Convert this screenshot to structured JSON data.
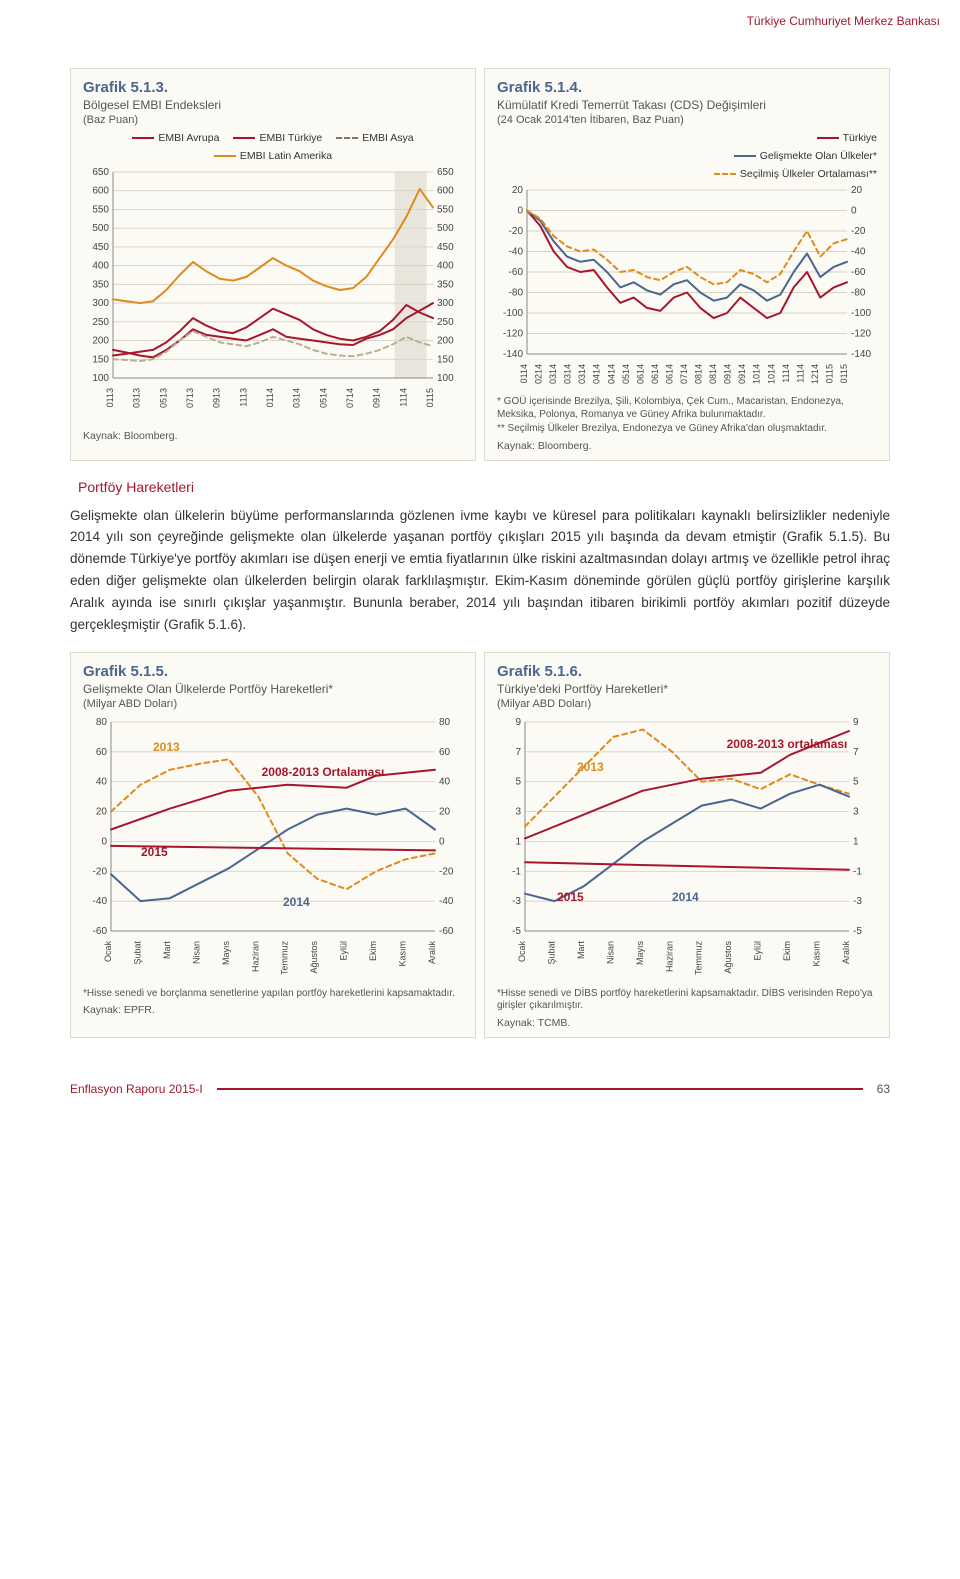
{
  "header": {
    "org": "Türkiye Cumhuriyet Merkez Bankası"
  },
  "chart513": {
    "type": "line",
    "title": "Grafik 5.1.3.",
    "subtitle": "Bölgesel EMBI Endeksleri",
    "unit": "(Baz Puan)",
    "legend": [
      {
        "label": "EMBI Avrupa",
        "color": "#a6172d",
        "dash": false
      },
      {
        "label": "EMBI Türkiye",
        "color": "#a6172d",
        "dash": false
      },
      {
        "label": "EMBI Asya",
        "color": "#7d7461",
        "dash": true
      },
      {
        "label": "EMBI Latin Amerika",
        "color": "#e08a1e",
        "dash": false
      }
    ],
    "yticks": [
      100,
      150,
      200,
      250,
      300,
      350,
      400,
      450,
      500,
      550,
      600,
      650
    ],
    "xticks": [
      "0113",
      "0313",
      "0513",
      "0713",
      "0913",
      "1113",
      "0114",
      "0314",
      "0514",
      "0714",
      "0914",
      "1114",
      "0115"
    ],
    "ylim": [
      100,
      650
    ],
    "shaded_band_x": [
      0.88,
      0.98
    ],
    "series": {
      "avrupa": {
        "color": "#a6172d",
        "dash": false,
        "y": [
          175,
          168,
          160,
          155,
          175,
          200,
          230,
          215,
          210,
          205,
          200,
          215,
          230,
          210,
          205,
          200,
          195,
          190,
          188,
          205,
          215,
          230,
          260,
          280,
          300
        ]
      },
      "turkiye": {
        "color": "#a6172d",
        "dash": false,
        "y": [
          160,
          165,
          170,
          175,
          195,
          225,
          260,
          240,
          225,
          220,
          235,
          260,
          285,
          270,
          255,
          230,
          215,
          205,
          200,
          210,
          225,
          255,
          295,
          275,
          260
        ]
      },
      "asya": {
        "color": "#b7b095",
        "dash": true,
        "y": [
          150,
          148,
          145,
          150,
          170,
          200,
          225,
          210,
          195,
          190,
          185,
          195,
          210,
          200,
          190,
          175,
          165,
          160,
          158,
          165,
          175,
          190,
          210,
          195,
          185
        ]
      },
      "latin": {
        "color": "#e08a1e",
        "dash": false,
        "y": [
          310,
          305,
          300,
          305,
          335,
          375,
          410,
          385,
          365,
          360,
          370,
          395,
          420,
          400,
          385,
          360,
          345,
          335,
          340,
          370,
          420,
          470,
          530,
          605,
          555
        ]
      }
    },
    "source": "Kaynak: Bloomberg."
  },
  "chart514": {
    "type": "line",
    "title": "Grafik 5.1.4.",
    "subtitle": "Kümülatif Kredi Temerrüt Takası (CDS) Değişimleri",
    "unit": "(24 Ocak 2014'ten İtibaren, Baz Puan)",
    "legend": [
      {
        "label": "Türkiye",
        "color": "#a6172d",
        "dash": false
      },
      {
        "label": "Gelişmekte Olan Ülkeler*",
        "color": "#4a6690",
        "dash": false
      },
      {
        "label": "Seçilmiş Ülkeler Ortalaması**",
        "color": "#e08a1e",
        "dash": true
      }
    ],
    "yticks": [
      -140,
      -120,
      -100,
      -80,
      -60,
      -40,
      -20,
      0,
      20
    ],
    "xticks": [
      "0114",
      "0214",
      "0314",
      "0314",
      "0314",
      "0414",
      "0414",
      "0514",
      "0614",
      "0614",
      "0614",
      "0714",
      "0814",
      "0814",
      "0914",
      "0914",
      "1014",
      "1014",
      "1114",
      "1114",
      "1214",
      "0115",
      "0115"
    ],
    "ylim": [
      -140,
      20
    ],
    "series": {
      "turkiye": {
        "color": "#a6172d",
        "dash": false,
        "y": [
          0,
          -15,
          -40,
          -55,
          -60,
          -58,
          -75,
          -90,
          -85,
          -95,
          -98,
          -85,
          -80,
          -95,
          -105,
          -100,
          -85,
          -95,
          -105,
          -100,
          -75,
          -60,
          -85,
          -75,
          -70
        ]
      },
      "gou": {
        "color": "#4a6690",
        "dash": false,
        "y": [
          0,
          -10,
          -30,
          -45,
          -50,
          -48,
          -60,
          -75,
          -70,
          -78,
          -82,
          -72,
          -68,
          -80,
          -88,
          -85,
          -72,
          -78,
          -88,
          -82,
          -60,
          -42,
          -65,
          -55,
          -50
        ]
      },
      "secilmis": {
        "color": "#e08a1e",
        "dash": true,
        "y": [
          0,
          -8,
          -25,
          -35,
          -40,
          -38,
          -48,
          -60,
          -58,
          -65,
          -68,
          -60,
          -55,
          -65,
          -72,
          -70,
          -58,
          -62,
          -70,
          -62,
          -40,
          -20,
          -45,
          -32,
          -28
        ]
      }
    },
    "note1": "* GOÜ içerisinde Brezilya, Şili, Kolombiya, Çek Cum., Macaristan, Endonezya, Meksika, Polonya, Romanya ve Güney Afrika bulunmaktadır.",
    "note2": "** Seçilmiş Ülkeler Brezilya, Endonezya ve Güney Afrika'dan oluşmaktadır.",
    "source": "Kaynak: Bloomberg."
  },
  "section_heading": "Portföy Hareketleri",
  "paragraph": "Gelişmekte olan ülkelerin büyüme performanslarında gözlenen ivme kaybı ve küresel para politikaları kaynaklı belirsizlikler nedeniyle 2014 yılı son çeyreğinde gelişmekte olan ülkelerde yaşanan portföy çıkışları 2015 yılı başında da devam etmiştir (Grafik 5.1.5). Bu dönemde Türkiye'ye portföy akımları ise düşen enerji ve emtia fiyatlarının ülke riskini azaltmasından dolayı artmış ve özellikle petrol ihraç eden diğer gelişmekte olan ülkelerden belirgin olarak farklılaşmıştır. Ekim-Kasım döneminde görülen güçlü portföy girişlerine karşılık Aralık ayında ise sınırlı çıkışlar yaşanmıştır. Bununla beraber, 2014 yılı başından itibaren birikimli portföy akımları pozitif düzeyde gerçekleşmiştir (Grafik 5.1.6).",
  "chart515": {
    "type": "line",
    "title": "Grafik 5.1.5.",
    "subtitle": "Gelişmekte Olan Ülkelerde Portföy Hareketleri*",
    "unit": "(Milyar ABD Doları)",
    "yticks": [
      -60,
      -40,
      -20,
      0,
      20,
      40,
      60,
      80
    ],
    "xticks": [
      "Ocak",
      "Şubat",
      "Mart",
      "Nisan",
      "Mayıs",
      "Haziran",
      "Temmuz",
      "Ağustos",
      "Eylül",
      "Ekim",
      "Kasım",
      "Aralık"
    ],
    "ylim": [
      -60,
      80
    ],
    "labels": {
      "l2013": "2013",
      "l2014": "2014",
      "l2015": "2015",
      "lavg": "2008-2013 Ortalaması"
    },
    "series": {
      "s2013": {
        "color": "#e08a1e",
        "dash": true,
        "y": [
          20,
          38,
          48,
          52,
          55,
          30,
          -8,
          -25,
          -32,
          -20,
          -12,
          -8
        ]
      },
      "savg": {
        "color": "#a6172d",
        "dash": false,
        "y": [
          8,
          15,
          22,
          28,
          34,
          36,
          38,
          37,
          36,
          44,
          46,
          48
        ]
      },
      "s2014": {
        "color": "#4a6690",
        "dash": false,
        "y": [
          -22,
          -40,
          -38,
          -28,
          -18,
          -5,
          8,
          18,
          22,
          18,
          22,
          8
        ]
      },
      "s2015": {
        "color": "#a6172d",
        "dash": false,
        "y": [
          -3,
          -6
        ]
      }
    },
    "note": "*Hisse senedi ve borçlanma senetlerine yapılan portföy hareketlerini kapsamaktadır.",
    "source": "Kaynak: EPFR."
  },
  "chart516": {
    "type": "line",
    "title": "Grafik 5.1.6.",
    "subtitle": "Türkiye'deki Portföy Hareketleri*",
    "unit": "(Milyar ABD Doları)",
    "yticks": [
      -5,
      -3,
      -1,
      1,
      3,
      5,
      7,
      9
    ],
    "xticks": [
      "Ocak",
      "Şubat",
      "Mart",
      "Nisan",
      "Mayıs",
      "Haziran",
      "Temmuz",
      "Ağustos",
      "Eylül",
      "Ekim",
      "Kasım",
      "Aralık"
    ],
    "ylim": [
      -5,
      9
    ],
    "labels": {
      "l2013": "2013",
      "l2014": "2014",
      "l2015": "2015",
      "lavg": "2008-2013 ortalaması"
    },
    "series": {
      "s2013": {
        "color": "#e08a1e",
        "dash": true,
        "y": [
          2,
          4,
          6,
          8,
          8.5,
          7,
          5,
          5.2,
          4.5,
          5.5,
          4.8,
          4.2
        ]
      },
      "savg": {
        "color": "#a6172d",
        "dash": false,
        "y": [
          1.2,
          2,
          2.8,
          3.6,
          4.4,
          4.8,
          5.2,
          5.4,
          5.6,
          6.8,
          7.6,
          8.4
        ]
      },
      "s2014": {
        "color": "#4a6690",
        "dash": false,
        "y": [
          -2.5,
          -3,
          -2,
          -0.5,
          1,
          2.2,
          3.4,
          3.8,
          3.2,
          4.2,
          4.8,
          4
        ]
      },
      "s2015": {
        "color": "#a6172d",
        "dash": false,
        "y": [
          -0.4,
          -0.9
        ]
      }
    },
    "note": "*Hisse senedi ve DİBS portföy hareketlerini kapsamaktadır. DİBS verisinden Repo'ya girişler çıkarılmıştır.",
    "source": "Kaynak: TCMB."
  },
  "footer": {
    "title": "Enflasyon Raporu 2015-I",
    "page": "63"
  }
}
